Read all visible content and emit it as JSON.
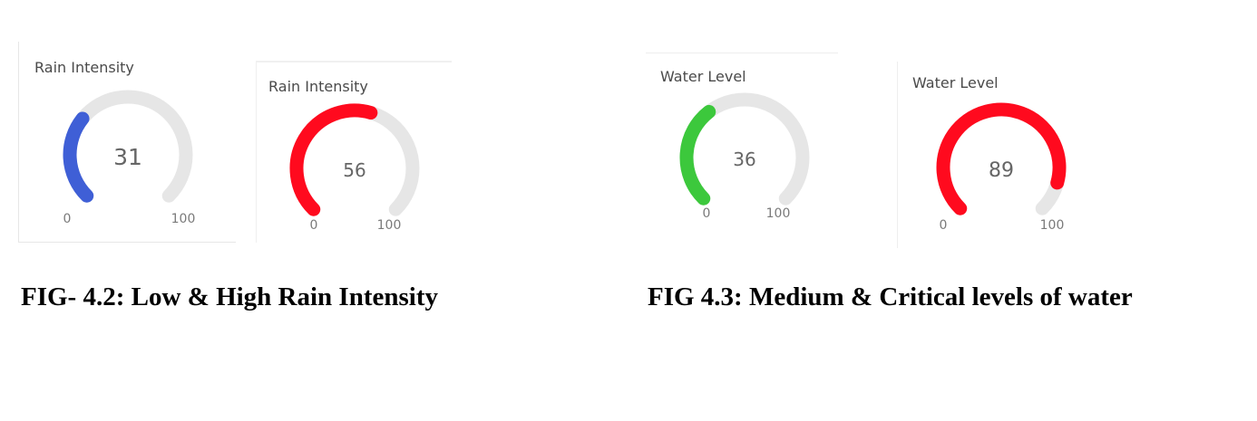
{
  "gauges": [
    {
      "title": "Rain Intensity",
      "value": "31",
      "min": "0",
      "max": "100",
      "level": 0.31,
      "color": "#3f5fd6"
    },
    {
      "title": "Rain Intensity",
      "value": "56",
      "min": "0",
      "max": "100",
      "level": 0.56,
      "color": "#ff0a1e"
    },
    {
      "title": "Water Level",
      "value": "36",
      "min": "0",
      "max": "100",
      "level": 0.36,
      "color": "#3cc83c"
    },
    {
      "title": "Water Level",
      "value": "89",
      "min": "0",
      "max": "100",
      "level": 0.89,
      "color": "#ff0a1e"
    }
  ],
  "track_color": "#e6e6e6",
  "captions": {
    "fig_4_2": "FIG- 4.2: Low & High Rain Intensity",
    "fig_4_3": "FIG 4.3: Medium & Critical levels of water"
  }
}
